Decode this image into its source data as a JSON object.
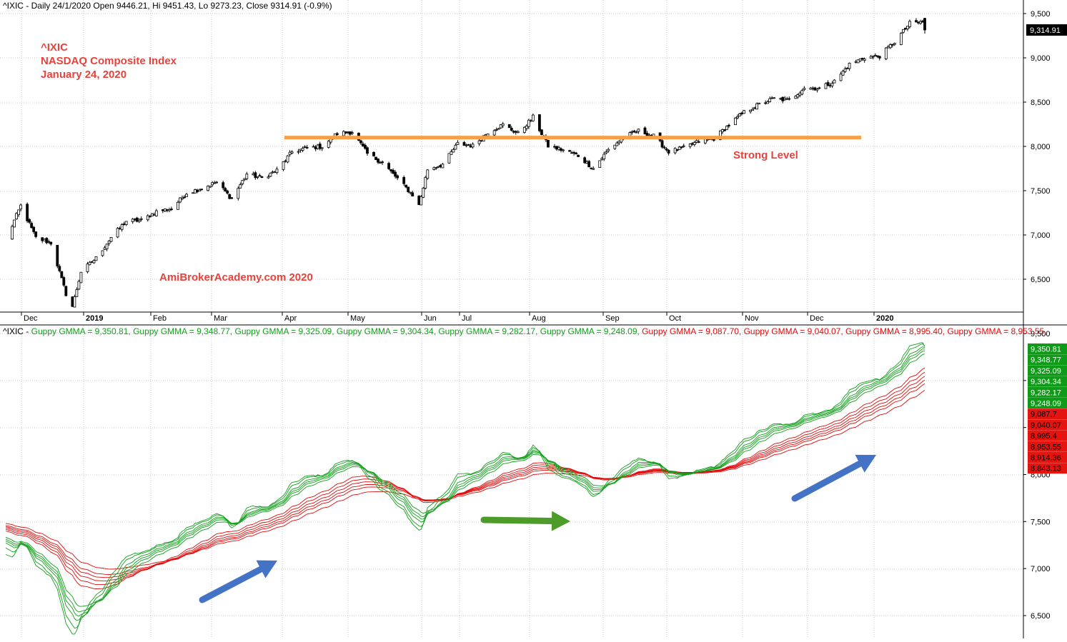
{
  "price_panel": {
    "header": "^IXIC - Daily 24/1/2020 Open 9446.21, Hi 9451.43, Lo 9273.23, Close 9314.91 (-0.9%)",
    "annotation_lines": [
      "^IXIC",
      "NASDAQ Composite Index",
      "January 24, 2020"
    ],
    "watermark": "AmiBrokerAcademy.com   2020",
    "level_label": "Strong Level",
    "last_price_label": "9,314.91"
  },
  "gmma_panel": {
    "header_prefix": "^IXIC - ",
    "header_items": [
      {
        "text": "Guppy GMMA = 9,350.81,",
        "color": "green"
      },
      {
        "text": "Guppy GMMA = 9,348.77,",
        "color": "green"
      },
      {
        "text": "Guppy GMMA = 9,325.09,",
        "color": "green"
      },
      {
        "text": "Guppy GMMA = 9,304.34,",
        "color": "green"
      },
      {
        "text": "Guppy GMMA = 9,282.17,",
        "color": "green"
      },
      {
        "text": "Guppy GMMA = 9,248.09,",
        "color": "green"
      },
      {
        "text": "Guppy GMMA = 9,087.70,",
        "color": "red"
      },
      {
        "text": "Guppy GMMA = 9,040.07,",
        "color": "red"
      },
      {
        "text": "Guppy GMMA = 8,995.40,",
        "color": "red"
      },
      {
        "text": "Guppy GMMA = 8,953.55,",
        "color": "red"
      }
    ],
    "value_labels": [
      {
        "text": "9,350.81",
        "color": "green"
      },
      {
        "text": "9,348.77",
        "color": "green"
      },
      {
        "text": "9,325.09",
        "color": "green"
      },
      {
        "text": "9,304.34",
        "color": "green"
      },
      {
        "text": "9,282.17",
        "color": "green"
      },
      {
        "text": "9,248.09",
        "color": "green"
      },
      {
        "text": "9,087.7",
        "color": "red"
      },
      {
        "text": "9,040.07",
        "color": "red"
      },
      {
        "text": "8,995.4",
        "color": "red"
      },
      {
        "text": "8,953.55",
        "color": "red"
      },
      {
        "text": "8,914.36",
        "color": "red"
      },
      {
        "text": "8,843.13",
        "color": "red"
      }
    ]
  },
  "colors": {
    "annotation": "#e8423c",
    "level_line": "#f7a048",
    "short_ema": "#129e1b",
    "long_ema": "#e00c0c",
    "arrow_blue": "#4472c4",
    "arrow_green": "#4d9b29",
    "label_green_bg": "#0f9a17",
    "label_red_bg": "#e5140f",
    "last_price_bg": "#000000",
    "grid": "#c8c8c8"
  },
  "chart_data": [
    {
      "type": "candlestick",
      "title": "^IXIC - Daily 24/1/2020 Open 9446.21, Hi 9451.43, Lo 9273.23, Close 9314.91 (-0.9%)",
      "y_ticks": [
        6500,
        7000,
        7500,
        8000,
        8500,
        9000,
        9500
      ],
      "ylim": [
        6130,
        9620
      ],
      "x_tick_labels": [
        "Dec",
        "2019",
        "Feb",
        "Mar",
        "Apr",
        "May",
        "Jun",
        "Jul",
        "Aug",
        "Sep",
        "Oct",
        "Nov",
        "Dec",
        "2020"
      ],
      "last": {
        "open": 9446.21,
        "high": 9451.43,
        "low": 9273.23,
        "close": 9314.91
      },
      "horizontal_level": 8100,
      "close_path": [
        [
          "2018-11-23",
          6939
        ],
        [
          "2018-11-30",
          7330
        ],
        [
          "2018-12-07",
          6969
        ],
        [
          "2018-12-14",
          6910
        ],
        [
          "2018-12-21",
          6333
        ],
        [
          "2018-12-24",
          6193
        ],
        [
          "2018-12-28",
          6585
        ],
        [
          "2019-01-04",
          6739
        ],
        [
          "2019-01-11",
          6972
        ],
        [
          "2019-01-18",
          7157
        ],
        [
          "2019-01-25",
          7165
        ],
        [
          "2019-02-01",
          7264
        ],
        [
          "2019-02-08",
          7298
        ],
        [
          "2019-02-15",
          7472
        ],
        [
          "2019-02-22",
          7527
        ],
        [
          "2019-03-01",
          7595
        ],
        [
          "2019-03-08",
          7408
        ],
        [
          "2019-03-15",
          7688
        ],
        [
          "2019-03-22",
          7643
        ],
        [
          "2019-03-29",
          7729
        ],
        [
          "2019-04-05",
          7939
        ],
        [
          "2019-04-12",
          7984
        ],
        [
          "2019-04-19",
          7998
        ],
        [
          "2019-04-26",
          8146
        ],
        [
          "2019-05-03",
          8164
        ],
        [
          "2019-05-10",
          7917
        ],
        [
          "2019-05-17",
          7816
        ],
        [
          "2019-05-24",
          7637
        ],
        [
          "2019-05-31",
          7453
        ],
        [
          "2019-06-03",
          7333
        ],
        [
          "2019-06-07",
          7742
        ],
        [
          "2019-06-14",
          7797
        ],
        [
          "2019-06-21",
          8031
        ],
        [
          "2019-06-28",
          8006
        ],
        [
          "2019-07-05",
          8161
        ],
        [
          "2019-07-12",
          8244
        ],
        [
          "2019-07-19",
          8146
        ],
        [
          "2019-07-26",
          8330
        ],
        [
          "2019-08-02",
          8004
        ],
        [
          "2019-08-09",
          7959
        ],
        [
          "2019-08-16",
          7895
        ],
        [
          "2019-08-23",
          7751
        ],
        [
          "2019-08-30",
          7962
        ],
        [
          "2019-09-06",
          8103
        ],
        [
          "2019-09-13",
          8176
        ],
        [
          "2019-09-20",
          8117
        ],
        [
          "2019-09-27",
          7940
        ],
        [
          "2019-10-04",
          7982
        ],
        [
          "2019-10-11",
          8057
        ],
        [
          "2019-10-18",
          8089
        ],
        [
          "2019-10-25",
          8243
        ],
        [
          "2019-11-01",
          8386
        ],
        [
          "2019-11-08",
          8475
        ],
        [
          "2019-11-15",
          8540
        ],
        [
          "2019-11-22",
          8520
        ],
        [
          "2019-11-29",
          8665
        ],
        [
          "2019-12-06",
          8656
        ],
        [
          "2019-12-13",
          8735
        ],
        [
          "2019-12-20",
          8925
        ],
        [
          "2019-12-27",
          9006
        ],
        [
          "2020-01-03",
          9020
        ],
        [
          "2020-01-10",
          9179
        ],
        [
          "2020-01-17",
          9389
        ],
        [
          "2020-01-23",
          9402
        ],
        [
          "2020-01-24",
          9315
        ]
      ]
    },
    {
      "type": "line",
      "title": "^IXIC - Guppy GMMA",
      "y_ticks": [
        6500,
        7000,
        7500,
        8000,
        8500,
        9000,
        9500
      ],
      "ylim": [
        6340,
        9530
      ],
      "short_term_ema_last": [
        9350.81,
        9348.77,
        9325.09,
        9304.34,
        9282.17,
        9248.09
      ],
      "long_term_ema_last": [
        9087.7,
        9040.07,
        8995.4,
        8953.55,
        8914.36,
        8843.13
      ]
    }
  ]
}
